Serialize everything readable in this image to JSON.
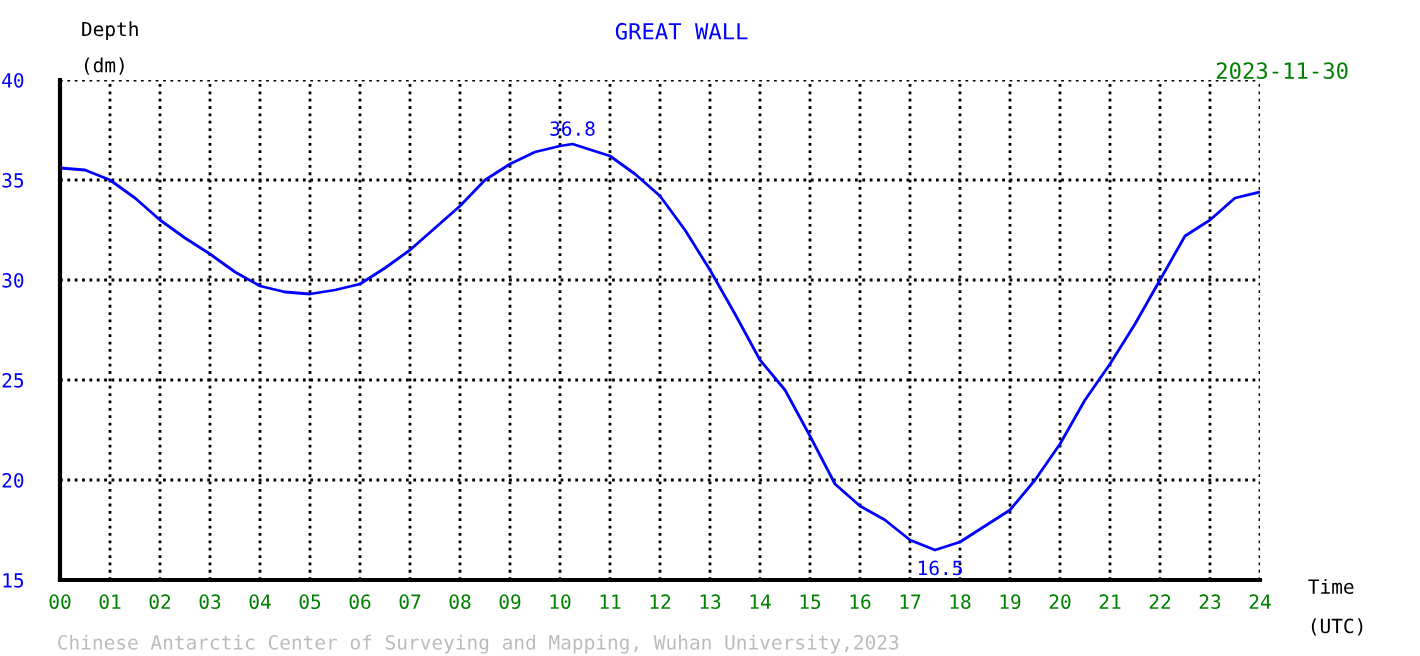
{
  "chart_data": {
    "type": "line",
    "title": "GREAT WALL",
    "subtitle": "2023-11-30",
    "xlabel": "Time\n(UTC)",
    "ylabel": "Depth\n(dm)",
    "x": [
      0,
      0.5,
      1,
      1.5,
      2,
      2.5,
      3,
      3.5,
      4,
      4.5,
      5,
      5.5,
      6,
      6.5,
      7,
      7.5,
      8,
      8.5,
      9,
      9.5,
      10,
      10.25,
      10.5,
      11,
      11.5,
      12,
      12.5,
      13,
      13.5,
      14,
      14.5,
      15,
      15.5,
      16,
      16.5,
      17,
      17.5,
      18,
      18.5,
      19,
      19.5,
      20,
      20.5,
      21,
      21.5,
      22,
      22.5,
      23,
      23.5,
      24
    ],
    "series": [
      {
        "color": "#0000ff",
        "values": [
          35.6,
          35.5,
          35.0,
          34.1,
          33.0,
          32.1,
          31.3,
          30.4,
          29.7,
          29.4,
          29.3,
          29.5,
          29.8,
          30.6,
          31.5,
          32.6,
          33.7,
          35.0,
          35.8,
          36.4,
          36.7,
          36.8,
          36.6,
          36.2,
          35.3,
          34.2,
          32.5,
          30.5,
          28.3,
          26.0,
          24.5,
          22.2,
          19.8,
          18.7,
          18.0,
          17.0,
          16.5,
          16.9,
          17.7,
          18.5,
          20.0,
          21.8,
          24.0,
          25.8,
          27.8,
          30.0,
          32.2,
          33.0,
          34.1,
          34.4
        ]
      }
    ],
    "xlim": [
      0,
      24
    ],
    "ylim": [
      15,
      40
    ],
    "xticks": [
      {
        "value": 0,
        "label": "00"
      },
      {
        "value": 1,
        "label": "01"
      },
      {
        "value": 2,
        "label": "02"
      },
      {
        "value": 3,
        "label": "03"
      },
      {
        "value": 4,
        "label": "04"
      },
      {
        "value": 5,
        "label": "05"
      },
      {
        "value": 6,
        "label": "06"
      },
      {
        "value": 7,
        "label": "07"
      },
      {
        "value": 8,
        "label": "08"
      },
      {
        "value": 9,
        "label": "09"
      },
      10,
      11,
      12,
      13,
      14,
      15,
      16,
      17,
      18,
      19,
      20,
      21,
      22,
      23,
      24
    ],
    "yticks": [
      15,
      20,
      25,
      30,
      35,
      40
    ],
    "grid": true,
    "line_style": "solid",
    "marker": "none",
    "annotations": [
      {
        "text": "36.8",
        "x": 10.25,
        "y": 36.8
      },
      {
        "text": "16.5",
        "x": 17.6,
        "y": 16.5
      },
      "Chinese Antarctic Center of Surveying and Mapping, Wuhan University,2023"
    ]
  }
}
